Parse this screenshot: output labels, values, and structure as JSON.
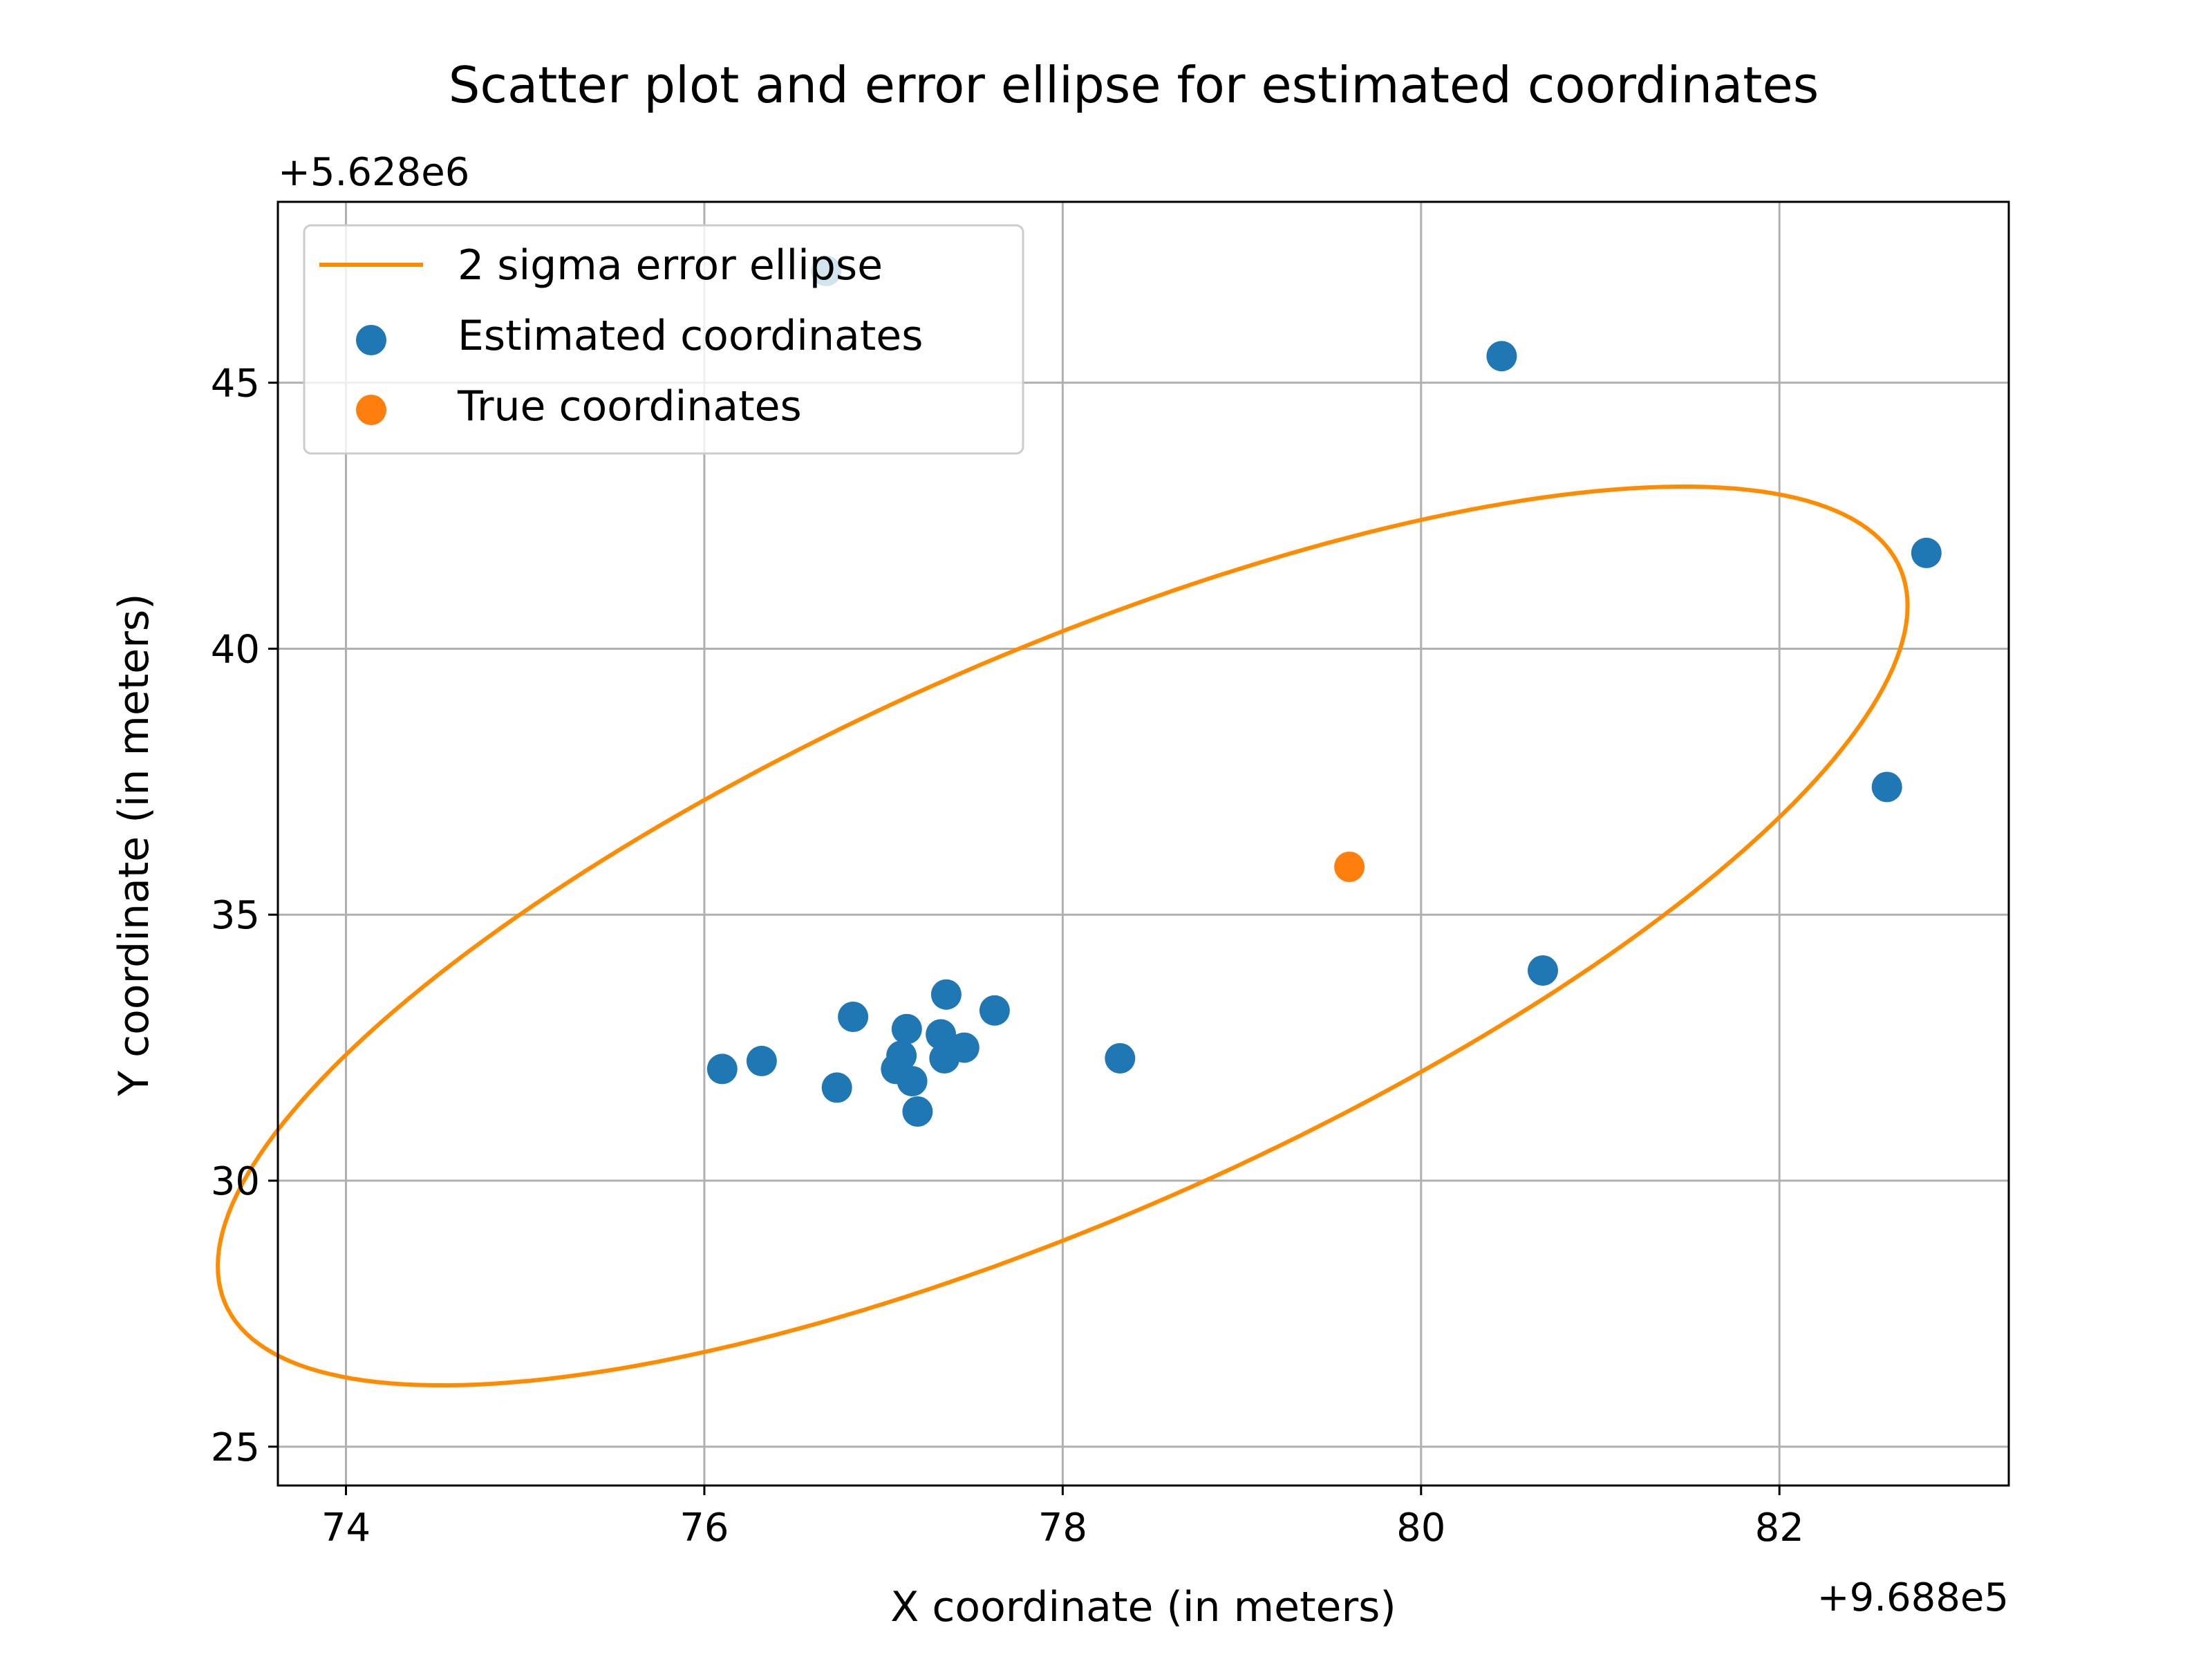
{
  "chart_data": {
    "type": "scatter",
    "title": "Scatter plot and error ellipse for estimated coordinates",
    "xlabel": "X coordinate (in meters)",
    "ylabel": "Y coordinate (in meters)",
    "x_offset_label": "+9.688e5",
    "y_offset_label": "+5.628e6",
    "xlim": [
      73.62,
      83.28
    ],
    "ylim": [
      24.27,
      48.4
    ],
    "xticks": [
      74,
      76,
      78,
      80,
      82
    ],
    "yticks": [
      25,
      30,
      35,
      40,
      45
    ],
    "grid": true,
    "legend_position": "upper-left",
    "colors": {
      "estimated": "#1f77b4",
      "true": "#ff7f0e",
      "ellipse": "#ff8c00",
      "grid": "#b0b0b0"
    },
    "ellipse": {
      "name": "2 sigma error ellipse",
      "center": [
        78.0,
        34.6
      ],
      "semi_major": 9.22,
      "semi_minor": 2.93,
      "angle_deg": 65.0
    },
    "series": [
      {
        "name": "Estimated coordinates",
        "points": [
          [
            76.1,
            32.1
          ],
          [
            76.32,
            32.25
          ],
          [
            76.74,
            31.75
          ],
          [
            76.83,
            33.08
          ],
          [
            77.07,
            32.1
          ],
          [
            77.1,
            32.35
          ],
          [
            77.13,
            32.85
          ],
          [
            77.16,
            31.87
          ],
          [
            77.19,
            31.3
          ],
          [
            77.32,
            32.75
          ],
          [
            77.34,
            32.3
          ],
          [
            77.35,
            33.5
          ],
          [
            77.45,
            32.5
          ],
          [
            77.62,
            33.2
          ],
          [
            78.32,
            32.3
          ],
          [
            80.45,
            45.5
          ],
          [
            80.68,
            33.95
          ],
          [
            82.6,
            37.4
          ],
          [
            82.82,
            41.8
          ],
          [
            76.68,
            47.1
          ]
        ]
      },
      {
        "name": "True coordinates",
        "points": [
          [
            79.6,
            35.9
          ]
        ]
      }
    ]
  }
}
